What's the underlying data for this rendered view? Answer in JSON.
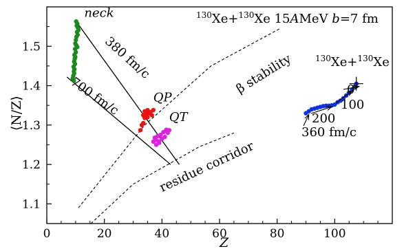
{
  "chart_data": {
    "type": "scatter",
    "title": "",
    "xlabel": "Z",
    "ylabel": "⟨N/Z⟩",
    "xlim": [
      0,
      120
    ],
    "ylim": [
      1.05,
      1.6
    ],
    "x_ticks": [
      0,
      20,
      40,
      60,
      80,
      100
    ],
    "y_ticks": [
      1.1,
      1.2,
      1.3,
      1.4,
      1.5
    ],
    "grid": false,
    "legend": "none",
    "header_annotation": {
      "prefix_sup": "130",
      "text1": "Xe+",
      "mid_sup": "130",
      "text2": "Xe 15",
      "italic_a": "A",
      "text3": "MeV ",
      "italic_b": "b",
      "text4": "=7 fm"
    },
    "inset_annotation": {
      "prefix_sup": "130",
      "text1": "Xe+",
      "mid_sup": "130",
      "text2": "Xe"
    },
    "labels": {
      "neck": "neck",
      "qp": "QP",
      "qt": "QT",
      "time_380": "380 fm/c",
      "time_700": "700 fm/c",
      "beta_stability": "β stability",
      "residue_corridor": "residue corridor",
      "t0": "0",
      "t100": "100",
      "t200": "200",
      "t360": "360 fm/c"
    },
    "series": [
      {
        "color": "#1a8a1a",
        "x": [
          10.2,
          10.6,
          10.4,
          10.8,
          11.0,
          10.5,
          10.7,
          10.3,
          10.1,
          9.9,
          10.2,
          10.6,
          9.8,
          10.1,
          9.6,
          9.9,
          9.7,
          9.5,
          9.8,
          9.3,
          9.6,
          9.4,
          9.5,
          9.2,
          9.0,
          9.4
        ],
        "y": [
          1.563,
          1.557,
          1.552,
          1.547,
          1.541,
          1.536,
          1.529,
          1.524,
          1.516,
          1.507,
          1.503,
          1.498,
          1.493,
          1.485,
          1.478,
          1.473,
          1.468,
          1.461,
          1.455,
          1.448,
          1.442,
          1.436,
          1.431,
          1.425,
          1.418,
          1.412
        ]
      },
      {
        "color": "#ee1111",
        "x": [
          34.0,
          35.0,
          36.0,
          37.0,
          34.5,
          35.5,
          36.5,
          33.5,
          34.0,
          35.0,
          33.0,
          32.5,
          33.5
        ],
        "y": [
          1.335,
          1.338,
          1.333,
          1.338,
          1.328,
          1.33,
          1.325,
          1.325,
          1.318,
          1.32,
          1.3,
          1.287,
          1.305
        ]
      },
      {
        "color": "#dd22dd",
        "x": [
          37.0,
          38.0,
          39.0,
          40.0,
          41.0,
          42.0,
          38.5,
          39.5,
          40.5,
          37.5,
          38.0,
          39.0,
          41.5,
          42.5
        ],
        "y": [
          1.258,
          1.262,
          1.258,
          1.265,
          1.27,
          1.28,
          1.272,
          1.275,
          1.282,
          1.268,
          1.25,
          1.255,
          1.288,
          1.287
        ]
      },
      {
        "color": "#1133dd",
        "x": [
          90.0,
          91.0,
          92.0,
          93.0,
          94.0,
          95.0,
          96.0,
          97.0,
          98.0,
          99.0,
          100.0,
          101.0,
          102.0,
          103.0,
          104.0,
          105.0,
          106.0,
          107.0,
          107.5
        ],
        "y": [
          1.33,
          1.335,
          1.34,
          1.342,
          1.344,
          1.346,
          1.348,
          1.349,
          1.349,
          1.35,
          1.352,
          1.358,
          1.362,
          1.368,
          1.375,
          1.382,
          1.39,
          1.398,
          1.405
        ]
      }
    ],
    "lines": [
      {
        "style": "solid",
        "points": [
          [
            10.0,
            1.565
          ],
          [
            46.0,
            1.2
          ]
        ]
      },
      {
        "style": "solid",
        "points": [
          [
            7.0,
            1.422
          ],
          [
            43.0,
            1.2
          ]
        ]
      },
      {
        "style": "dashed",
        "points": [
          [
            11.0,
            1.09
          ],
          [
            34.0,
            1.3
          ],
          [
            57.0,
            1.45
          ],
          [
            81.0,
            1.545
          ]
        ]
      },
      {
        "style": "dashed",
        "points": [
          [
            8.0,
            1.0
          ],
          [
            30.0,
            1.15
          ],
          [
            53.0,
            1.245
          ],
          [
            65.0,
            1.28
          ]
        ]
      }
    ]
  }
}
